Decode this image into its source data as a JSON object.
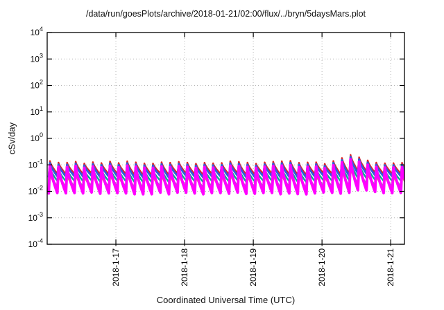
{
  "window": {
    "background": "#ffffff"
  },
  "chart_data": {
    "type": "line",
    "title": "/data/run/goesPlots/archive/2018-01-21/02:00/flux/../bryn/5daysMars.plot",
    "xlabel": "Coordinated Universal Time (UTC)",
    "ylabel": "cSv/day",
    "y_scale": "log10",
    "ylim": [
      0.0001,
      10000
    ],
    "y_tick_exponents": [
      4,
      3,
      2,
      1,
      0,
      -1,
      -2,
      -3,
      -4
    ],
    "x_start_date": "2018-1-16",
    "x_span_days": 5.2,
    "x_ticks": [
      {
        "label": "2018-1-17",
        "day": 1
      },
      {
        "label": "2018-1-18",
        "day": 2
      },
      {
        "label": "2018-1-19",
        "day": 3
      },
      {
        "label": "2018-1-20",
        "day": 4
      },
      {
        "label": "2018-1-21",
        "day": 5
      }
    ],
    "grid": {
      "show": true,
      "style": "dotted",
      "color": "#b4b4b4"
    },
    "frame_color": "#000000",
    "waveform": {
      "shape": "sawtooth-decay",
      "period_hours": 3,
      "rise_fraction": 0.14,
      "decay_curve_power": 0.75,
      "first_peak_day": 0.04,
      "enhancement": {
        "center_day": 4.44,
        "sigma_days": 0.12,
        "peak_factor": 1.85,
        "trough_factor": 1.25
      }
    },
    "series": [
      {
        "name": "yellow",
        "color": "#ccc000",
        "line_width": 1.8,
        "peak_cSv_day": 0.042,
        "trough_cSv_day": 0.012
      },
      {
        "name": "slate",
        "color": "#8888aa",
        "line_width": 1.8,
        "peak_cSv_day": 0.05,
        "trough_cSv_day": 0.015
      },
      {
        "name": "teal",
        "color": "#00b08c",
        "line_width": 2.4,
        "peak_cSv_day": 0.07,
        "trough_cSv_day": 0.024
      },
      {
        "name": "red",
        "color": "#e02424",
        "line_width": 2.4,
        "peak_cSv_day": 0.125,
        "trough_cSv_day": 0.045
      },
      {
        "name": "blue",
        "color": "#2e5fd8",
        "line_width": 3.0,
        "peak_cSv_day": 0.105,
        "trough_cSv_day": 0.036
      },
      {
        "name": "magenta",
        "color": "#ff00ff",
        "line_width": 4.0,
        "peak_cSv_day": 0.085,
        "trough_cSv_day": 0.0085
      }
    ]
  }
}
